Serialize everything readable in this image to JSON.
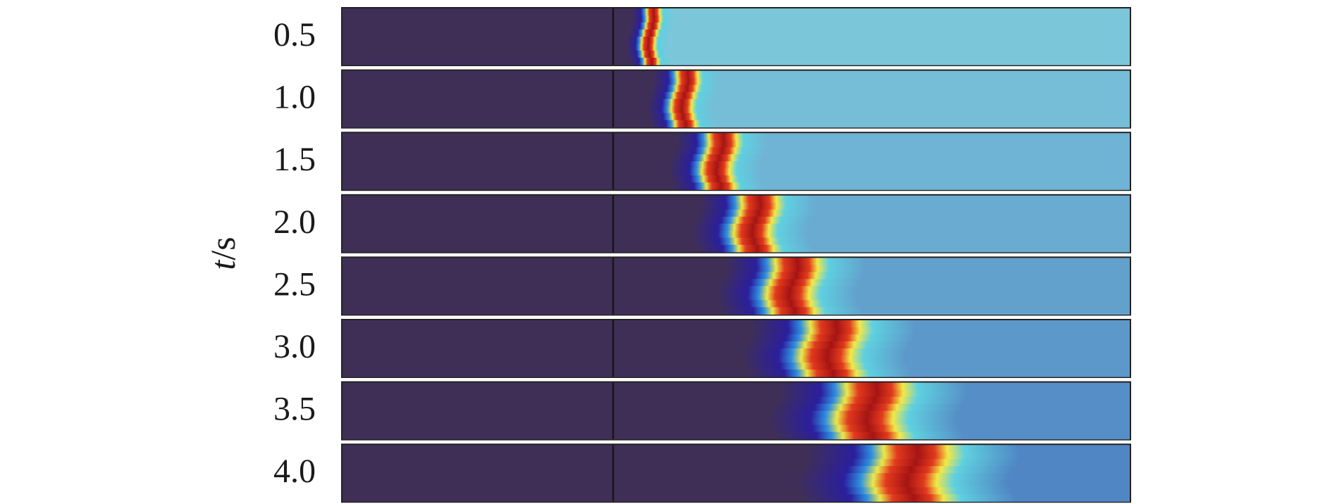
{
  "axis_label": {
    "symbol": "t",
    "unit": "/s"
  },
  "snapshots": [
    {
      "label": "0.5"
    },
    {
      "label": "1.0"
    },
    {
      "label": "1.5"
    },
    {
      "label": "2.0"
    },
    {
      "label": "2.5"
    },
    {
      "label": "3.0"
    },
    {
      "label": "3.5"
    },
    {
      "label": "4.0"
    }
  ]
}
